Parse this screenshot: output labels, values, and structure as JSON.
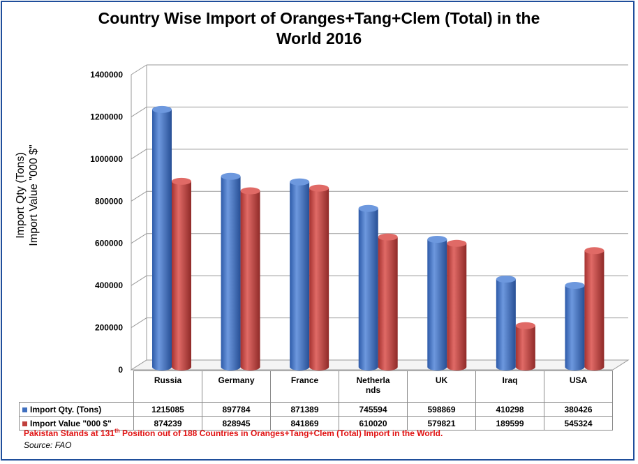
{
  "title_lines": [
    "Country Wise Import of Oranges+Tang+Clem (Total) in the",
    "World 2016"
  ],
  "y_axis_label_lines": [
    "Import Qty (Tons)",
    "Import Value \"000 $\""
  ],
  "chart_data": {
    "type": "bar",
    "title": "Country Wise Import of Oranges+Tang+Clem (Total) in the World 2016",
    "categories": [
      "Russia",
      "Germany",
      "France",
      "Netherla nds",
      "UK",
      "Iraq",
      "USA"
    ],
    "series": [
      {
        "name": "Import Qty. (Tons)",
        "color": "#3f6fbf",
        "values": [
          1215085,
          897784,
          871389,
          745594,
          598869,
          410298,
          380426
        ]
      },
      {
        "name": "Import Value \"000 $\"",
        "color": "#c0403d",
        "values": [
          874239,
          828945,
          841869,
          610020,
          579821,
          189599,
          545324
        ]
      }
    ],
    "y_ticks": [
      "0",
      "200000",
      "400000",
      "600000",
      "800000",
      "1000000",
      "1200000",
      "1400000"
    ],
    "ylim": [
      0,
      1400000
    ],
    "grid": true,
    "legend": "data-table"
  },
  "table": {
    "header": [
      "Russia",
      "Germany",
      "France",
      "Netherla nds",
      "UK",
      "Iraq",
      "USA"
    ],
    "header_display": [
      "Russia",
      "Germany",
      "France",
      "Netherla\nnds",
      "UK",
      "Iraq",
      "USA"
    ],
    "rows": [
      {
        "label": "Import Qty. (Tons)",
        "cells": [
          "1215085",
          "897784",
          "871389",
          "745594",
          "598869",
          "410298",
          "380426"
        ]
      },
      {
        "label": "Import Value \"000 $\"",
        "cells": [
          "874239",
          "828945",
          "841869",
          "610020",
          "579821",
          "189599",
          "545324"
        ]
      }
    ]
  },
  "footnote": {
    "pre": "Pakistan Stands at 131",
    "sup": "th",
    "post": "  Position out of 188  Countries in Oranges+Tang+Clem (Total) Import in the World."
  },
  "source": "Source: FAO"
}
